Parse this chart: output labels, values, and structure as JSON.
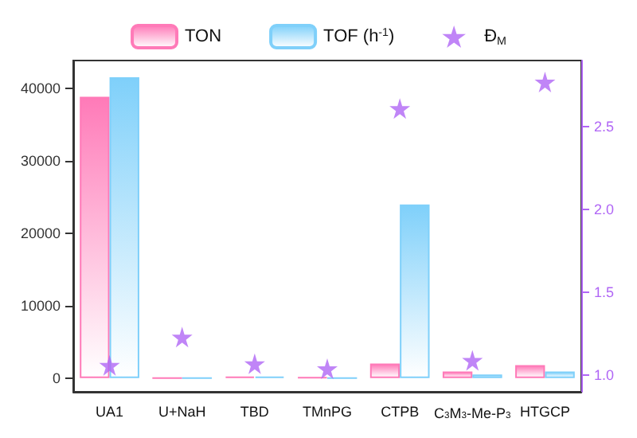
{
  "chart_data": {
    "type": "bar",
    "categories": [
      "UA1",
      "U+NaH",
      "TBD",
      "TMnPG",
      "CTPB",
      "C$_{3}$M$_{3}$-Me-P$_{3}$",
      "HTGCP"
    ],
    "series": [
      {
        "name": "TON",
        "color": "#ff7ab8",
        "values": [
          38900,
          0,
          200,
          100,
          2000,
          900,
          1800
        ]
      },
      {
        "name": "TOF (h$^{-1}$)",
        "color": "#7fd0fa",
        "values": [
          41600,
          0,
          200,
          0,
          24000,
          500,
          900
        ]
      },
      {
        "name": "Đ$_{M}$",
        "type": "scatter",
        "axis": "y2",
        "color": "#b066f5",
        "values": [
          1.06,
          1.23,
          1.07,
          1.04,
          2.61,
          1.09,
          2.77
        ]
      }
    ],
    "ylim": [
      -1900,
      43900
    ],
    "yticks": [
      0,
      10000,
      20000,
      30000,
      40000
    ],
    "y2lim": [
      0.9,
      2.9
    ],
    "y2ticks": [
      {
        "value": 1,
        "label": "1.0"
      },
      1.5,
      {
        "value": 2,
        "label": "2.0"
      },
      2.5
    ],
    "legend": "top",
    "marker": "star",
    "grid": false
  }
}
